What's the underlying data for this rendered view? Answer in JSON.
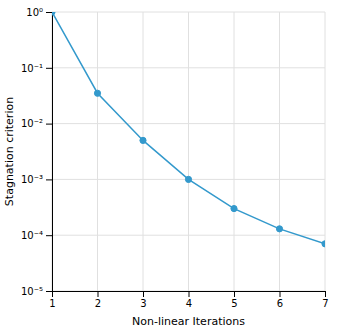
{
  "chart_data": {
    "type": "line",
    "x": [
      1,
      2,
      3,
      4,
      5,
      6,
      7
    ],
    "values": [
      1.0,
      0.035,
      0.005,
      0.001,
      0.0003,
      0.00013,
      7e-05
    ],
    "color": "#3399cc",
    "marker": "circle",
    "xlabel": "Non-linear Iterations",
    "ylabel": "Stagnation criterion",
    "xlim": [
      1,
      7
    ],
    "xticks": [
      1,
      2,
      3,
      4,
      5,
      6,
      7
    ],
    "ylim": [
      1e-05,
      1
    ],
    "yticks": [
      {
        "value": 1e-05,
        "label": "10⁻⁵"
      },
      {
        "value": 0.0001,
        "label": "10⁻⁴"
      },
      {
        "value": 0.001,
        "label": "10⁻³"
      },
      {
        "value": 0.01,
        "label": "10⁻²"
      },
      {
        "value": 0.1,
        "label": "10⁻¹"
      },
      {
        "value": 1,
        "label": "10⁰"
      }
    ],
    "log": "y",
    "grid": true
  }
}
